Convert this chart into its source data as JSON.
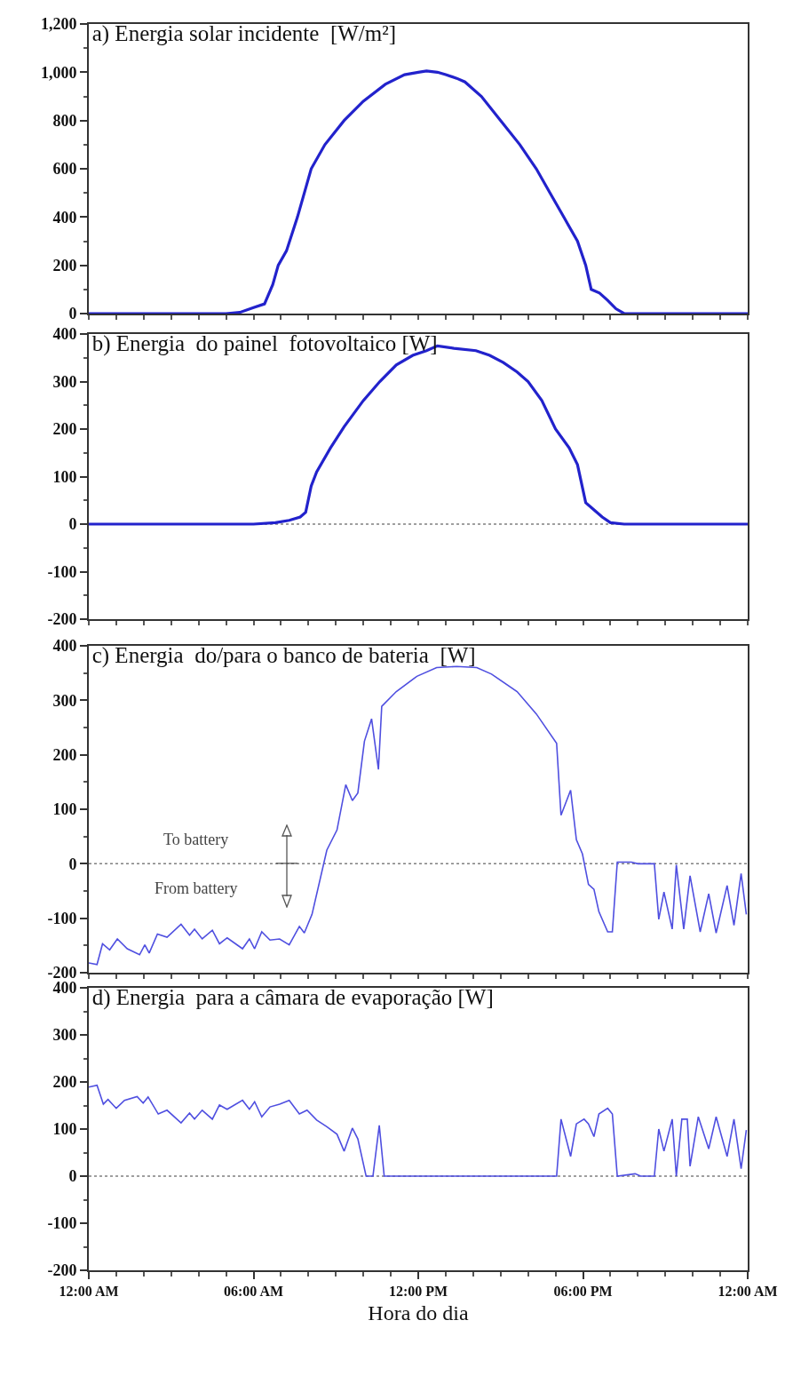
{
  "chart_data": [
    {
      "type": "line",
      "title": "a) Energia solar incidente  [W/m²]",
      "xlim": [
        0,
        24
      ],
      "xticks": [
        {
          "value": 0,
          "label": null
        },
        {
          "value": 6,
          "label": null
        },
        {
          "value": 12,
          "label": null
        },
        {
          "value": 18,
          "label": null
        },
        {
          "value": 24,
          "label": null
        }
      ],
      "ylim": [
        0,
        1200
      ],
      "yticks": [
        0,
        200,
        400,
        600,
        800,
        {
          "value": 1000,
          "label": "1,000"
        },
        {
          "value": 1200,
          "label": "1,200"
        }
      ],
      "tick_labels": "y",
      "series": [
        {
          "color": "#2222cc",
          "x": [
            0,
            5,
            5.5,
            6,
            6.4,
            6.7,
            6.9,
            7.2,
            7.6,
            8.1,
            8.6,
            9.3,
            10,
            10.8,
            11.5,
            12,
            12.3,
            12.7,
            13,
            13.4,
            13.7,
            14.3,
            15,
            15.7,
            16.3,
            16.8,
            17.3,
            17.8,
            18.1,
            18.3,
            18.6,
            18.9,
            19.2,
            19.5,
            24
          ],
          "values": [
            0,
            0,
            5,
            25,
            40,
            120,
            200,
            260,
            400,
            600,
            700,
            800,
            880,
            950,
            990,
            1000,
            1005,
            1000,
            990,
            975,
            960,
            900,
            800,
            700,
            600,
            500,
            400,
            300,
            200,
            100,
            85,
            55,
            20,
            0,
            0
          ]
        }
      ]
    },
    {
      "type": "line",
      "title": "b) Energia  do painel  fotovoltaico [W]",
      "xlim": [
        0,
        24
      ],
      "xticks": [
        {
          "value": 0,
          "label": null
        },
        {
          "value": 6,
          "label": null
        },
        {
          "value": 12,
          "label": null
        },
        {
          "value": 18,
          "label": null
        },
        {
          "value": 24,
          "label": null
        }
      ],
      "ylim": [
        -200,
        400
      ],
      "yticks": [
        -200,
        -100,
        0,
        100,
        200,
        300,
        400
      ],
      "tick_labels": "y",
      "ref_lines": [
        {
          "axis": "y",
          "value": 0,
          "color": "#808080",
          "line_style": "dotted"
        }
      ],
      "series": [
        {
          "color": "#2222cc",
          "x": [
            0,
            6,
            6.8,
            7.3,
            7.7,
            7.9,
            8.1,
            8.3,
            8.8,
            9.3,
            10,
            10.6,
            11.2,
            11.8,
            12.3,
            12.7,
            13.3,
            14.1,
            14.6,
            15.1,
            15.6,
            16,
            16.5,
            17,
            17.5,
            17.8,
            18.1,
            18.3,
            18.7,
            19,
            19.5,
            24
          ],
          "values": [
            0,
            0,
            3,
            8,
            15,
            25,
            80,
            110,
            160,
            205,
            260,
            300,
            335,
            355,
            365,
            375,
            370,
            365,
            355,
            340,
            320,
            300,
            260,
            200,
            160,
            125,
            45,
            35,
            15,
            3,
            0,
            0
          ]
        }
      ]
    },
    {
      "type": "line",
      "title": "c) Energia  do/para o banco de bateria  [W]",
      "xlim": [
        0,
        24
      ],
      "xticks": [
        {
          "value": 0,
          "label": null
        },
        {
          "value": 6,
          "label": null
        },
        {
          "value": 12,
          "label": null
        },
        {
          "value": 18,
          "label": null
        },
        {
          "value": 24,
          "label": null
        }
      ],
      "ylim": [
        -200,
        400
      ],
      "yticks": [
        -200,
        -100,
        0,
        100,
        200,
        300,
        400
      ],
      "tick_labels": "y",
      "annotations": [
        "To battery",
        "From battery"
      ],
      "ref_lines": [
        {
          "axis": "y",
          "value": 0,
          "color": "#808080",
          "line_style": "dotted"
        }
      ],
      "series": [
        {
          "color": "#4f4fe0",
          "x": [
            0,
            0.3,
            0.5,
            0.76,
            1.04,
            1.4,
            1.85,
            2.04,
            2.2,
            2.5,
            2.85,
            3.36,
            3.67,
            3.85,
            4.13,
            4.5,
            4.76,
            5.04,
            5.6,
            5.85,
            6.04,
            6.3,
            6.6,
            6.95,
            7.3,
            7.67,
            7.85,
            8.13,
            8.67,
            9.04,
            9.36,
            9.6,
            9.8,
            10.04,
            10.3,
            10.55,
            10.67,
            11.2,
            11.95,
            12.67,
            13.4,
            14.13,
            14.67,
            15.6,
            16.3,
            17.04,
            17.2,
            17.55,
            17.76,
            17.98,
            18.2,
            18.4,
            18.58,
            18.9,
            19.07,
            19.25,
            19.76,
            20,
            20.6,
            20.76,
            20.95,
            21.25,
            21.4,
            21.67,
            21.9,
            22.27,
            22.58,
            22.85,
            23.25,
            23.5,
            23.76,
            23.95
          ],
          "values": [
            -182,
            -185,
            -147,
            -158,
            -138,
            -156,
            -167,
            -149,
            -164,
            -129,
            -135,
            -111,
            -131,
            -120,
            -138,
            -122,
            -147,
            -136,
            -156,
            -138,
            -156,
            -125,
            -140,
            -138,
            -149,
            -115,
            -127,
            -93,
            25,
            62,
            145,
            116,
            130,
            225,
            266,
            173,
            289,
            316,
            344,
            360,
            362,
            360,
            348,
            316,
            275,
            221,
            89,
            135,
            44,
            18,
            -38,
            -47,
            -88,
            -125,
            -125,
            3,
            3,
            0,
            0,
            -102,
            -52,
            -120,
            -2,
            -120,
            -22,
            -125,
            -55,
            -127,
            -40,
            -113,
            -18,
            -93
          ]
        }
      ]
    },
    {
      "type": "line",
      "title": "d) Energia  para a câmara de evaporação [W]",
      "xlabel": "Hora do dia",
      "xlim": [
        0,
        24
      ],
      "xticks": [
        {
          "value": 0,
          "label": "12:00 AM"
        },
        {
          "value": 6,
          "label": "06:00 AM"
        },
        {
          "value": 12,
          "label": "12:00 PM"
        },
        {
          "value": 18,
          "label": "06:00 PM"
        },
        {
          "value": 24,
          "label": "12:00 AM"
        }
      ],
      "ylim": [
        -200,
        400
      ],
      "yticks": [
        -200,
        -100,
        0,
        100,
        200,
        300,
        400
      ],
      "ref_lines": [
        {
          "axis": "y",
          "value": 0,
          "color": "#808080",
          "line_style": "dotted"
        }
      ],
      "series": [
        {
          "color": "#4f4fe0",
          "x": [
            0,
            0.3,
            0.53,
            0.7,
            1,
            1.3,
            1.76,
            1.98,
            2.16,
            2.53,
            2.85,
            3.36,
            3.67,
            3.85,
            4.13,
            4.5,
            4.76,
            5.04,
            5.6,
            5.85,
            6.04,
            6.3,
            6.6,
            6.95,
            7.3,
            7.67,
            7.95,
            8.3,
            8.67,
            9.04,
            9.3,
            9.6,
            9.8,
            10.1,
            10.35,
            10.58,
            10.76,
            17.04,
            17.2,
            17.55,
            17.76,
            18.04,
            18.2,
            18.4,
            18.58,
            18.9,
            19.07,
            19.25,
            19.9,
            20.1,
            20.6,
            20.76,
            20.95,
            21.25,
            21.4,
            21.6,
            21.8,
            21.9,
            22.2,
            22.58,
            22.85,
            23.25,
            23.5,
            23.76,
            23.95
          ],
          "values": [
            189,
            193,
            153,
            163,
            144,
            161,
            169,
            155,
            168,
            132,
            140,
            113,
            134,
            121,
            140,
            121,
            151,
            142,
            161,
            142,
            158,
            126,
            147,
            153,
            161,
            132,
            140,
            119,
            105,
            89,
            53,
            102,
            79,
            0,
            0,
            108,
            0,
            0,
            121,
            42,
            111,
            121,
            111,
            84,
            132,
            144,
            132,
            0,
            5,
            0,
            0,
            100,
            53,
            121,
            0,
            121,
            121,
            21,
            126,
            58,
            126,
            42,
            121,
            16,
            98
          ]
        }
      ]
    }
  ]
}
